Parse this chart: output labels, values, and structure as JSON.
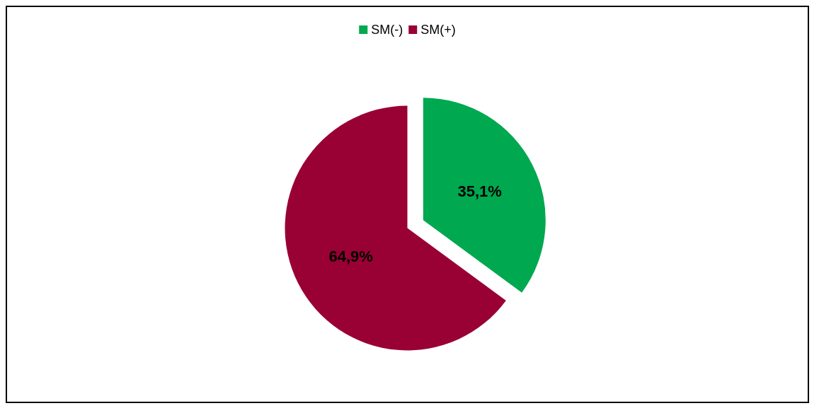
{
  "chart_data": {
    "type": "pie",
    "categories": [
      "SM(-)",
      "SM(+)"
    ],
    "values": [
      35.1,
      64.9
    ],
    "colors": [
      "#00a84f",
      "#990033"
    ],
    "value_labels": [
      "35,1%",
      "64,9%"
    ],
    "legend": "top"
  }
}
